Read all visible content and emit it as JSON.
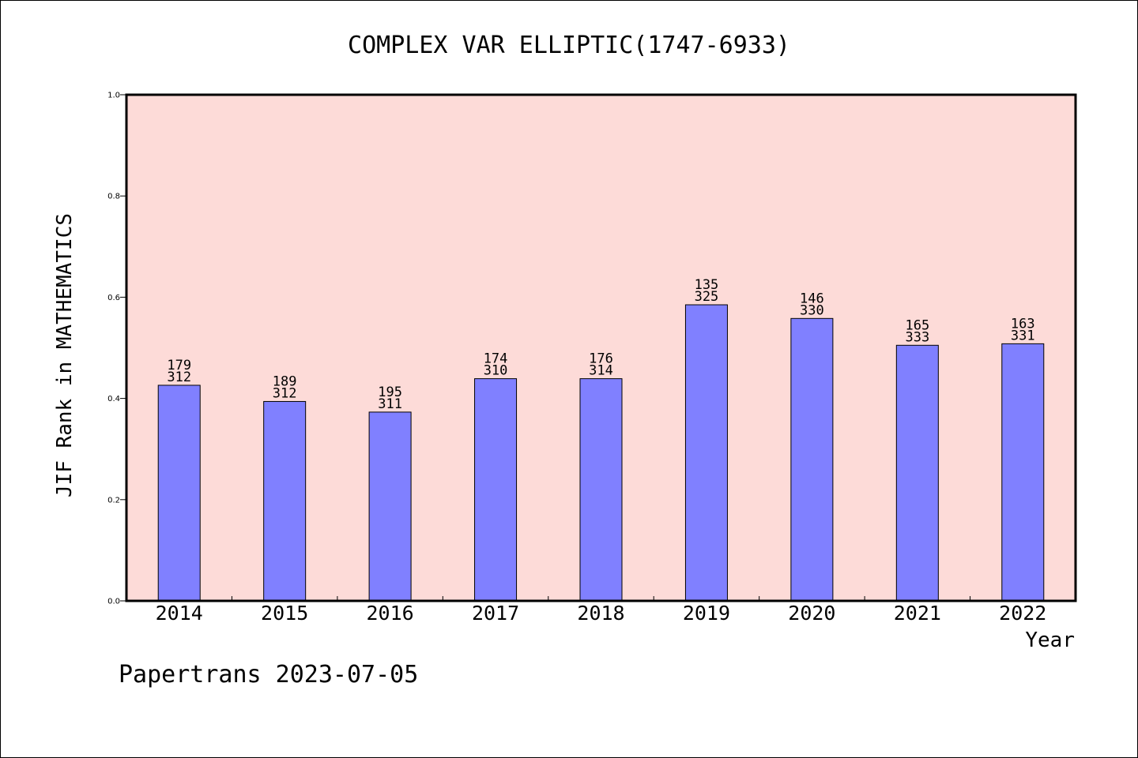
{
  "chart_data": {
    "type": "bar",
    "title": "COMPLEX VAR ELLIPTIC(1747-6933)",
    "xlabel": "Year",
    "ylabel": "JIF Rank in MATHEMATICS",
    "ylim": [
      0.0,
      1.0
    ],
    "yticks": [
      "0.0",
      "0.2",
      "0.4",
      "0.6",
      "0.8",
      "1.0"
    ],
    "categories": [
      "2014",
      "2015",
      "2016",
      "2017",
      "2018",
      "2019",
      "2020",
      "2021",
      "2022"
    ],
    "values": [
      0.426,
      0.394,
      0.373,
      0.439,
      0.439,
      0.585,
      0.558,
      0.505,
      0.508
    ],
    "rank_labels": [
      "179",
      "189",
      "195",
      "174",
      "176",
      "135",
      "146",
      "165",
      "163"
    ],
    "total_labels": [
      "312",
      "312",
      "311",
      "310",
      "314",
      "325",
      "330",
      "333",
      "331"
    ],
    "grid": false,
    "colors": {
      "plot_background": "#fddbd8",
      "bar_fill": "#8080ff",
      "bar_stroke": "#000000"
    }
  },
  "footer": {
    "text": "Papertrans 2023-07-05"
  }
}
